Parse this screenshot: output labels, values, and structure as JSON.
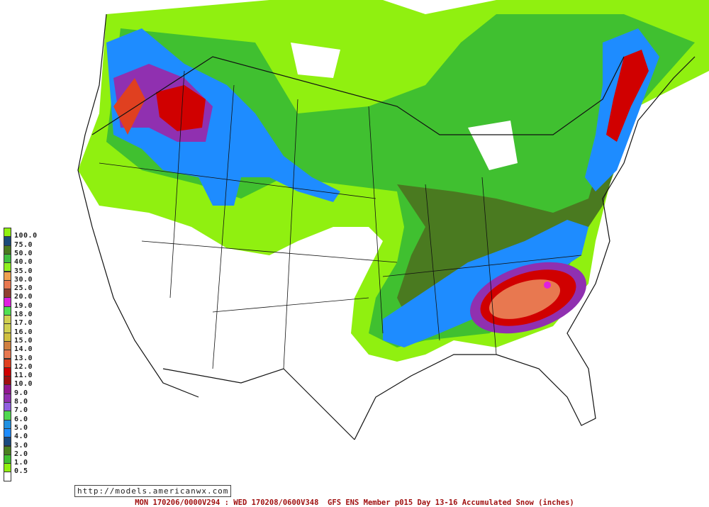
{
  "map": {
    "source_url": "http://models.americanwx.com",
    "caption": "MON 170206/0000V294 : WED 170208/0600V348  GFS ENS Member p015 Day 13-16 Accumulated Snow (inches)",
    "variable": "Accumulated Snow (inches)",
    "model": "GFS ENS Member p015"
  },
  "legend": {
    "labels": [
      "100.0",
      "75.0",
      "50.0",
      "40.0",
      "35.0",
      "30.0",
      "25.0",
      "20.0",
      "19.0",
      "18.0",
      "17.0",
      "16.0",
      "15.0",
      "14.0",
      "13.0",
      "12.0",
      "11.0",
      "10.0",
      "9.0",
      "8.0",
      "7.0",
      "6.0",
      "5.0",
      "4.0",
      "3.0",
      "2.0",
      "1.0",
      "0.5"
    ],
    "colors": [
      "#90f010",
      "#1a4a7a",
      "#4a7a20",
      "#40c040",
      "#90f020",
      "#f0a050",
      "#e87850",
      "#904030",
      "#e020e0",
      "#50e050",
      "#d0d050",
      "#d0d050",
      "#d0c040",
      "#d08040",
      "#e87850",
      "#e04020",
      "#d00000",
      "#a01010",
      "#901890",
      "#9030b0",
      "#9060e0",
      "#50d850",
      "#2090e0",
      "#1e8cff",
      "#1a4a80",
      "#4a8020",
      "#40c030",
      "#90f010",
      "#ffffff"
    ]
  }
}
